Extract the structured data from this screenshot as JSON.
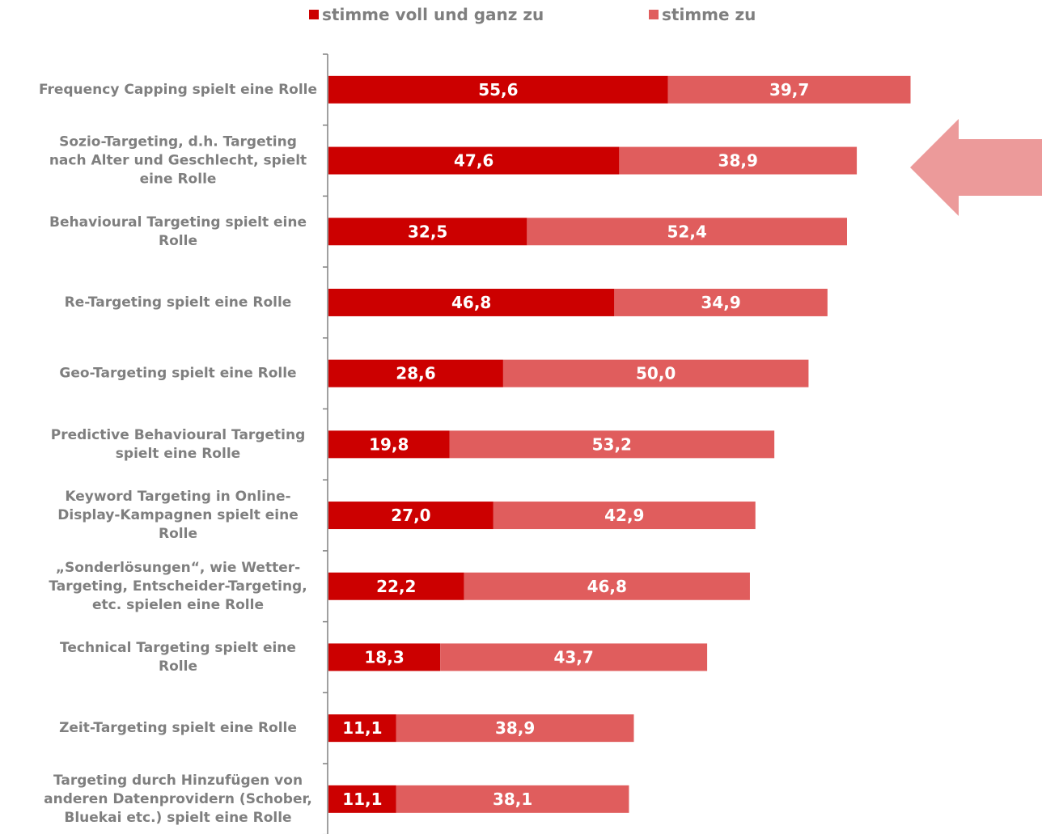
{
  "colors": {
    "strongly_agree": "#cc0000",
    "agree": "#e05d5d",
    "arrow": "#ec9a9a",
    "axis": "#808080",
    "label": "#7f7f7f"
  },
  "legend": [
    {
      "label": "stimme voll und ganz zu",
      "color": "#cc0000"
    },
    {
      "label": "stimme zu",
      "color": "#e05d5d"
    }
  ],
  "annotation": {
    "icon": "left-arrow-icon",
    "points_to": "Sozio-Targeting, d.h. Targeting nach Alter und Geschlecht, spielt eine Rolle"
  },
  "chart_data": {
    "type": "bar",
    "orientation": "horizontal",
    "stacked": true,
    "categories": [
      [
        "Frequency Capping spielt eine Rolle"
      ],
      [
        "Sozio-Targeting, d.h. Targeting",
        "nach Alter und Geschlecht, spielt",
        "eine Rolle"
      ],
      [
        "Behavioural Targeting spielt eine",
        "Rolle"
      ],
      [
        "Re-Targeting spielt eine Rolle"
      ],
      [
        "Geo-Targeting spielt eine Rolle"
      ],
      [
        "Predictive Behavioural Targeting",
        "spielt eine Rolle"
      ],
      [
        "Keyword Targeting in Online-",
        "Display-Kampagnen spielt eine",
        "Rolle"
      ],
      [
        "„Sonderlösungen“, wie Wetter-",
        "Targeting, Entscheider-Targeting,",
        "etc. spielen eine Rolle"
      ],
      [
        "Technical Targeting spielt eine",
        "Rolle"
      ],
      [
        "Zeit-Targeting spielt eine Rolle"
      ],
      [
        "Targeting durch Hinzufügen von",
        "anderen Datenprovidern (Schober,",
        "Bluekai etc.) spielt eine Rolle"
      ]
    ],
    "series": [
      {
        "name": "stimme voll und ganz zu",
        "values": [
          55.6,
          47.6,
          32.5,
          46.8,
          28.6,
          19.8,
          27.0,
          22.2,
          18.3,
          11.1,
          11.1
        ],
        "labels": [
          "55,6",
          "47,6",
          "32,5",
          "46,8",
          "28,6",
          "19,8",
          "27,0",
          "22,2",
          "18,3",
          "11,1",
          "11,1"
        ]
      },
      {
        "name": "stimme zu",
        "values": [
          39.7,
          38.9,
          52.4,
          34.9,
          50.0,
          53.2,
          42.9,
          46.8,
          43.7,
          38.9,
          38.1
        ],
        "labels": [
          "39,7",
          "38,9",
          "52,4",
          "34,9",
          "50,0",
          "53,2",
          "42,9",
          "46,8",
          "43,7",
          "38,9",
          "38,1"
        ]
      }
    ],
    "xlim": [
      0,
      100
    ],
    "grid": false,
    "legend_position": "top"
  }
}
